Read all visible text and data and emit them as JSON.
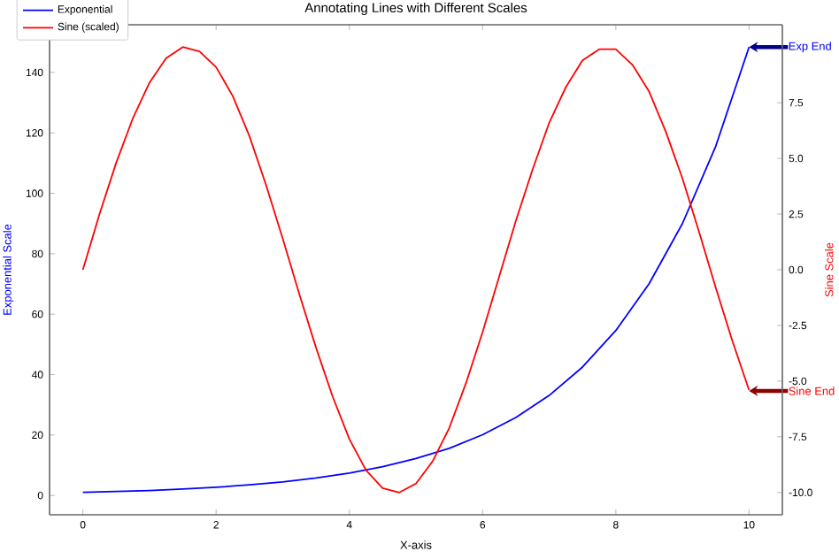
{
  "chart_data": {
    "type": "line",
    "title": "Annotating Lines with Different Scales",
    "xlabel": "X-axis",
    "ylabel": "Exponential Scale",
    "y2label": "Sine Scale",
    "series": [
      {
        "name": "Exponential",
        "color": "#0000ff",
        "x": [
          0,
          0.5,
          1,
          1.5,
          2,
          2.5,
          3,
          3.5,
          4,
          4.5,
          5,
          5.5,
          6,
          6.5,
          7,
          7.5,
          8,
          8.5,
          9,
          9.5,
          10
        ],
        "values": [
          1,
          1.3,
          1.6,
          2.1,
          2.7,
          3.5,
          4.5,
          5.8,
          7.4,
          9.5,
          12.2,
          15.6,
          20.1,
          25.8,
          33.1,
          42.5,
          54.6,
          70.1,
          90,
          115.6,
          148.4
        ]
      },
      {
        "name": "Sine (scaled)",
        "color": "#ff0000",
        "axis": "y2",
        "x": [
          0,
          0.25,
          0.5,
          0.75,
          1,
          1.25,
          1.5,
          1.75,
          2,
          2.25,
          2.5,
          2.75,
          3,
          3.25,
          3.5,
          3.75,
          4,
          4.25,
          4.5,
          4.75,
          5,
          5.25,
          5.5,
          5.75,
          6,
          6.25,
          6.5,
          6.75,
          7,
          7.25,
          7.5,
          7.75,
          8,
          8.25,
          8.5,
          8.75,
          9,
          9.25,
          9.5,
          9.75,
          10
        ],
        "values": [
          0,
          2.5,
          4.8,
          6.8,
          8.4,
          9.5,
          10,
          9.8,
          9.1,
          7.8,
          6,
          3.8,
          1.4,
          -1.1,
          -3.5,
          -5.7,
          -7.6,
          -9,
          -9.8,
          -10,
          -9.6,
          -8.6,
          -7.1,
          -5.1,
          -2.8,
          -0.3,
          2.2,
          4.5,
          6.6,
          8.2,
          9.4,
          9.9,
          9.9,
          9.2,
          8,
          6.2,
          4.1,
          1.7,
          -0.8,
          -3.2,
          -5.4
        ]
      }
    ],
    "xlim": [
      -0.5,
      10.5
    ],
    "xticks": [
      0,
      2,
      4,
      6,
      8,
      10
    ],
    "ylim": [
      -6.4,
      155.8
    ],
    "yticks": [
      0,
      20,
      40,
      60,
      80,
      100,
      120,
      140
    ],
    "y2lim": [
      -11,
      11
    ],
    "y2ticks": [
      {
        "value": -10,
        "label": "-10.0"
      },
      {
        "value": -7.5,
        "label": "-7.5"
      },
      {
        "value": -5,
        "label": "-5.0"
      },
      {
        "value": -2.5,
        "label": "-2.5"
      },
      {
        "value": 0,
        "label": "0.0"
      },
      {
        "value": 2.5,
        "label": "2.5"
      },
      {
        "value": 5,
        "label": "5.0"
      },
      {
        "value": 7.5,
        "label": "7.5"
      }
    ],
    "annotations": [
      {
        "text": "Exp End",
        "x": 10,
        "y": 148.4
      },
      {
        "text": "Sine End",
        "x": 10,
        "y": 34.6
      }
    ],
    "legend": "top left",
    "grid": false
  }
}
